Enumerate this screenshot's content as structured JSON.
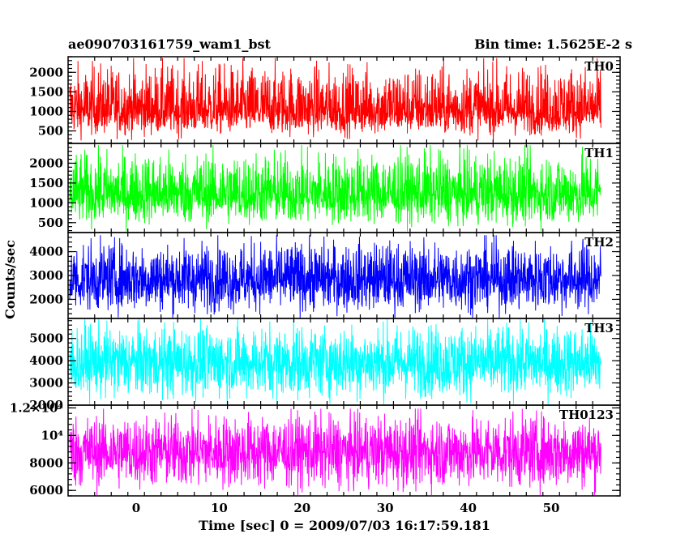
{
  "header": {
    "title": "ae090703161759_wam1_bst",
    "bin_time": "Bin time: 1.5625E-2 s"
  },
  "chart_data": {
    "type": "line",
    "ylabel": "Counts/sec",
    "xlabel": "Time [sec] 0 = 2009/07/03 16:17:59.181",
    "xlim": [
      -8.2,
      58.3
    ],
    "x_data_range": [
      -8,
      56
    ],
    "x_ticks": [
      0,
      10,
      20,
      30,
      40,
      50
    ],
    "x_tick_labels": [
      "0",
      "10",
      "20",
      "30",
      "40",
      "50"
    ],
    "panels": [
      {
        "name": "TH0",
        "color": "#ff0000",
        "ylim": [
          180,
          2400
        ],
        "ticks": [
          500,
          1000,
          1500,
          2000
        ],
        "tick_labels": [
          "500",
          "1000",
          "1500",
          "2000"
        ],
        "mean": 1000,
        "low": 350,
        "high": 2300
      },
      {
        "name": "TH1",
        "color": "#00ff00",
        "ylim": [
          250,
          2500
        ],
        "ticks": [
          500,
          1000,
          1500,
          2000
        ],
        "tick_labels": [
          "500",
          "1000",
          "1500",
          "2000"
        ],
        "mean": 1200,
        "low": 400,
        "high": 2400
      },
      {
        "name": "TH2",
        "color": "#0000ff",
        "ylim": [
          1200,
          4800
        ],
        "ticks": [
          2000,
          3000,
          4000
        ],
        "tick_labels": [
          "2000",
          "3000",
          "4000"
        ],
        "mean": 2800,
        "low": 1400,
        "high": 4600
      },
      {
        "name": "TH3",
        "color": "#00ffff",
        "ylim": [
          2000,
          5900
        ],
        "ticks": [
          2000,
          3000,
          4000,
          5000
        ],
        "tick_labels": [
          "2000",
          "3000",
          "4000",
          "5000"
        ],
        "mean": 3900,
        "low": 2200,
        "high": 5800
      },
      {
        "name": "TH0123",
        "color": "#ff00ff",
        "ylim": [
          5600,
          12200
        ],
        "ticks": [
          6000,
          8000,
          10000,
          12000
        ],
        "tick_labels": [
          "6000",
          "8000",
          "10⁴",
          "1.2×10⁴"
        ],
        "mean": 8800,
        "low": 5900,
        "high": 11800
      }
    ]
  }
}
